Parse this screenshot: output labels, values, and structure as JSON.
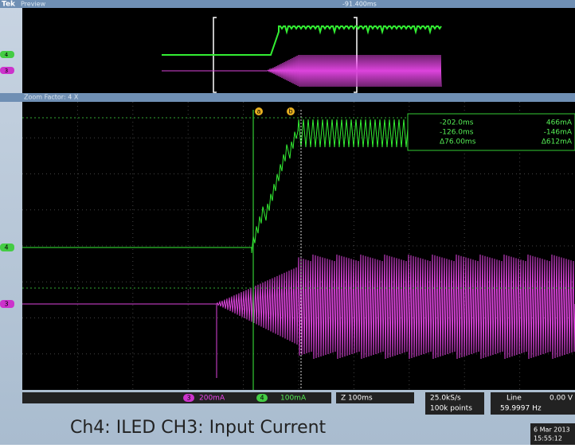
{
  "header": {
    "brand": "Tek",
    "mode": "Preview",
    "position": "-91.400ms"
  },
  "zoom": {
    "label": "Zoom Factor: 4 X"
  },
  "channels": {
    "ch4": "4",
    "ch3": "3"
  },
  "cursors": {
    "a": "a",
    "b": "b"
  },
  "readout": {
    "rows": [
      [
        "-202.0ms",
        "466mA"
      ],
      [
        "-126.0ms",
        "-146mA"
      ],
      [
        "Δ76.00ms",
        "Δ612mA"
      ]
    ]
  },
  "status": {
    "ch3_id": "3",
    "ch3_scale": "200mA",
    "ch4_id": "4",
    "ch4_scale": "100mA",
    "timebase": "Z 100ms",
    "rate": "25.0kS/s",
    "points": "100k points",
    "trigger": "Line",
    "trigger_level": "0.00 V",
    "freq": "59.9997 Hz"
  },
  "caption": "Ch4: ILED  CH3: Input Current",
  "date": "6 Mar 2013",
  "time": "15:55:12"
}
